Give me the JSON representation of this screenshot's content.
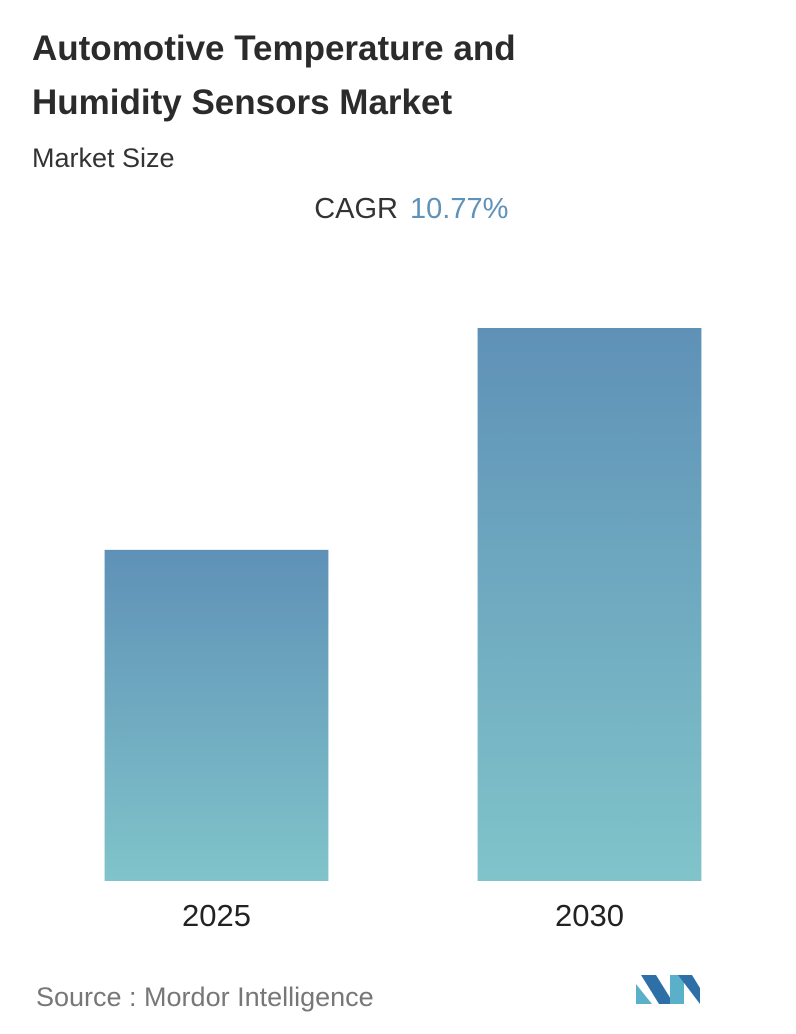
{
  "chart_data": {
    "type": "bar",
    "title_lines": [
      "Automotive Temperature and",
      "Humidity Sensors Market"
    ],
    "subtitle": "Market Size",
    "cagr_label": "CAGR",
    "cagr_value": "10.77%",
    "categories": [
      "2025",
      "2030"
    ],
    "values": [
      1,
      1.67
    ],
    "ylim": [
      0,
      1.67
    ],
    "colors": [
      "#5f91b7",
      "#80c4ca"
    ],
    "source": "Source :  Mordor Intelligence"
  }
}
